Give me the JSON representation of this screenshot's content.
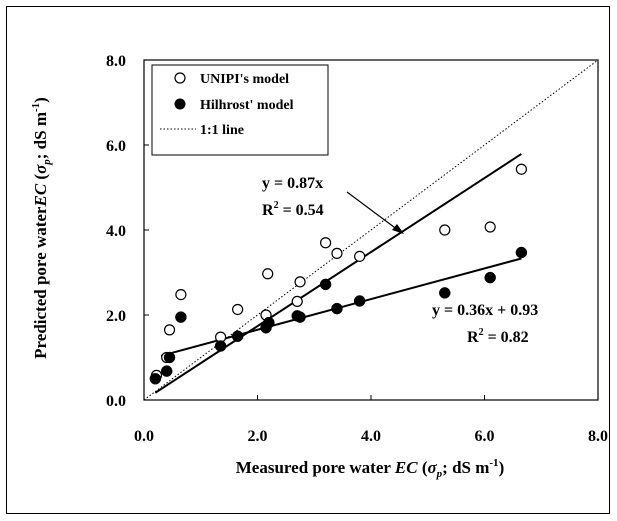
{
  "chart_data": {
    "type": "scatter",
    "title": "",
    "xlabel": "Measured pore water EC (σp; dS m-1)",
    "ylabel": "Predicted pore water EC (σp; dS m-1)",
    "xlabel_parts": {
      "pre": "Measured pore water ",
      "ec": "EC",
      "open": " (",
      "sigma": "σ",
      "sub": "p",
      "unit": "; dS m",
      "sup": "-1",
      "close": ")"
    },
    "ylabel_parts": {
      "pre": "Predicted pore water",
      "ec": "EC",
      "open": " (",
      "sigma": "σ",
      "sub": "p",
      "unit": "; dS m",
      "sup": "-1",
      "close": ")"
    },
    "xlim": [
      0,
      8
    ],
    "ylim": [
      0,
      8
    ],
    "x_ticks": [
      "0.0",
      "2.0",
      "4.0",
      "6.0",
      "8.0"
    ],
    "y_ticks": [
      "0.0",
      "2.0",
      "4.0",
      "6.0",
      "8.0"
    ],
    "x_tick_values": [
      0,
      2,
      4,
      6,
      8
    ],
    "y_tick_values": [
      0,
      2,
      4,
      6,
      8
    ],
    "grid": false,
    "legend_position": "top-left",
    "series": [
      {
        "name": "UNIPI's model",
        "marker": "open-circle",
        "points": [
          [
            0.22,
            0.58
          ],
          [
            0.4,
            1.0
          ],
          [
            0.45,
            1.65
          ],
          [
            0.65,
            2.48
          ],
          [
            1.35,
            1.48
          ],
          [
            1.65,
            2.13
          ],
          [
            2.15,
            2.0
          ],
          [
            2.18,
            2.97
          ],
          [
            2.7,
            2.32
          ],
          [
            2.75,
            2.78
          ],
          [
            3.2,
            3.7
          ],
          [
            3.4,
            3.45
          ],
          [
            3.8,
            3.38
          ],
          [
            5.3,
            4.0
          ],
          [
            6.1,
            4.07
          ],
          [
            6.65,
            5.43
          ]
        ],
        "fit": {
          "label1": "y = 0.87x",
          "label2_base": "R",
          "label2_sup": "2",
          "label2_rest": " = 0.54",
          "line": [
            [
              0.2,
              0.17
            ],
            [
              6.65,
              5.79
            ]
          ]
        }
      },
      {
        "name": "Hilhrost' model",
        "marker": "filled-circle",
        "points": [
          [
            0.2,
            0.5
          ],
          [
            0.4,
            0.68
          ],
          [
            0.45,
            1.0
          ],
          [
            0.65,
            1.95
          ],
          [
            1.35,
            1.27
          ],
          [
            1.65,
            1.5
          ],
          [
            2.15,
            1.7
          ],
          [
            2.2,
            1.82
          ],
          [
            2.7,
            1.98
          ],
          [
            2.75,
            1.95
          ],
          [
            3.2,
            2.72
          ],
          [
            3.4,
            2.15
          ],
          [
            3.8,
            2.33
          ],
          [
            5.3,
            2.52
          ],
          [
            6.1,
            2.88
          ],
          [
            6.65,
            3.47
          ]
        ],
        "fit": {
          "label1": "y = 0.36x + 0.93",
          "label2_base": "R",
          "label2_sup": "2",
          "label2_rest": " = 0.82",
          "line": [
            [
              0.3,
              1.04
            ],
            [
              6.65,
              3.33
            ]
          ]
        }
      }
    ],
    "reference_line": {
      "name": "1:1 line",
      "line": [
        [
          0,
          0
        ],
        [
          8,
          8
        ]
      ]
    }
  }
}
